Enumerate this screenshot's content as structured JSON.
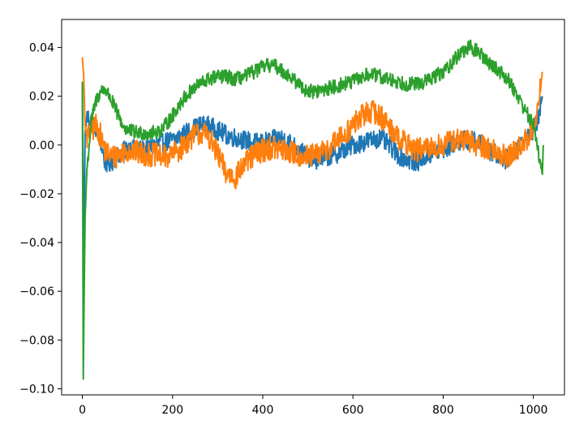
{
  "chart_data": {
    "type": "line",
    "title": "",
    "xlabel": "",
    "ylabel": "",
    "xlim": [
      -46,
      1069
    ],
    "ylim": [
      -0.1025,
      0.0515
    ],
    "grid": false,
    "legend": "none",
    "x_ticks": [
      0,
      200,
      400,
      600,
      800,
      1000
    ],
    "x_tick_labels": [
      "0",
      "200",
      "400",
      "600",
      "800",
      "1000"
    ],
    "y_ticks": [
      -0.1,
      -0.08,
      -0.06,
      -0.04,
      -0.02,
      0.0,
      0.02,
      0.04
    ],
    "y_tick_labels": [
      "−0.10",
      "−0.08",
      "−0.06",
      "−0.04",
      "−0.02",
      "0.00",
      "0.02",
      "0.04"
    ],
    "series": [
      {
        "color": "#1f77b4",
        "noise": 0.004,
        "points": [
          [
            0,
            0.024
          ],
          [
            3,
            -0.05
          ],
          [
            6,
            0.005
          ],
          [
            10,
            0.012
          ],
          [
            20,
            0.01
          ],
          [
            30,
            0.007
          ],
          [
            40,
            0.002
          ],
          [
            50,
            -0.007
          ],
          [
            60,
            -0.008
          ],
          [
            70,
            -0.006
          ],
          [
            80,
            -0.004
          ],
          [
            90,
            -0.003
          ],
          [
            100,
            -0.001
          ],
          [
            120,
            -0.002
          ],
          [
            140,
            -0.002
          ],
          [
            160,
            0.0
          ],
          [
            180,
            0.001
          ],
          [
            200,
            0.002
          ],
          [
            220,
            0.004
          ],
          [
            240,
            0.006
          ],
          [
            260,
            0.008
          ],
          [
            280,
            0.008
          ],
          [
            300,
            0.006
          ],
          [
            320,
            0.004
          ],
          [
            340,
            0.003
          ],
          [
            360,
            0.002
          ],
          [
            380,
            0.001
          ],
          [
            400,
            0.001
          ],
          [
            420,
            0.002
          ],
          [
            440,
            0.003
          ],
          [
            460,
            0.001
          ],
          [
            480,
            -0.002
          ],
          [
            500,
            -0.005
          ],
          [
            520,
            -0.006
          ],
          [
            540,
            -0.005
          ],
          [
            560,
            -0.004
          ],
          [
            580,
            -0.002
          ],
          [
            600,
            0.0
          ],
          [
            620,
            0.001
          ],
          [
            640,
            0.002
          ],
          [
            660,
            0.003
          ],
          [
            680,
            0.0
          ],
          [
            700,
            -0.004
          ],
          [
            720,
            -0.006
          ],
          [
            740,
            -0.007
          ],
          [
            760,
            -0.005
          ],
          [
            780,
            -0.003
          ],
          [
            800,
            -0.002
          ],
          [
            820,
            0.0
          ],
          [
            840,
            0.002
          ],
          [
            860,
            0.002
          ],
          [
            880,
            0.001
          ],
          [
            900,
            -0.002
          ],
          [
            920,
            -0.004
          ],
          [
            940,
            -0.006
          ],
          [
            960,
            -0.002
          ],
          [
            980,
            0.002
          ],
          [
            1000,
            0.006
          ],
          [
            1010,
            0.01
          ],
          [
            1020,
            0.02
          ]
        ]
      },
      {
        "color": "#ff7f0e",
        "noise": 0.005,
        "points": [
          [
            0,
            0.036
          ],
          [
            3,
            0.028
          ],
          [
            6,
            0.008
          ],
          [
            10,
            0.003
          ],
          [
            20,
            0.006
          ],
          [
            30,
            0.008
          ],
          [
            40,
            0.004
          ],
          [
            50,
            -0.002
          ],
          [
            60,
            -0.004
          ],
          [
            70,
            -0.005
          ],
          [
            80,
            -0.004
          ],
          [
            90,
            -0.003
          ],
          [
            100,
            -0.002
          ],
          [
            120,
            -0.003
          ],
          [
            140,
            -0.004
          ],
          [
            160,
            -0.004
          ],
          [
            180,
            -0.005
          ],
          [
            200,
            -0.004
          ],
          [
            220,
            -0.001
          ],
          [
            240,
            0.003
          ],
          [
            260,
            0.005
          ],
          [
            280,
            0.004
          ],
          [
            300,
            -0.004
          ],
          [
            320,
            -0.012
          ],
          [
            340,
            -0.013
          ],
          [
            360,
            -0.008
          ],
          [
            380,
            -0.004
          ],
          [
            400,
            -0.002
          ],
          [
            420,
            -0.001
          ],
          [
            440,
            -0.002
          ],
          [
            460,
            -0.003
          ],
          [
            480,
            -0.004
          ],
          [
            500,
            -0.005
          ],
          [
            520,
            -0.004
          ],
          [
            540,
            -0.002
          ],
          [
            560,
            0.001
          ],
          [
            580,
            0.004
          ],
          [
            600,
            0.008
          ],
          [
            620,
            0.012
          ],
          [
            640,
            0.014
          ],
          [
            660,
            0.012
          ],
          [
            680,
            0.008
          ],
          [
            700,
            0.003
          ],
          [
            720,
            0.0
          ],
          [
            740,
            -0.002
          ],
          [
            760,
            -0.002
          ],
          [
            780,
            -0.001
          ],
          [
            800,
            0.0
          ],
          [
            820,
            0.002
          ],
          [
            840,
            0.002
          ],
          [
            860,
            0.001
          ],
          [
            880,
            0.0
          ],
          [
            900,
            -0.001
          ],
          [
            920,
            -0.003
          ],
          [
            940,
            -0.005
          ],
          [
            960,
            -0.003
          ],
          [
            980,
            0.001
          ],
          [
            1000,
            0.006
          ],
          [
            1010,
            0.014
          ],
          [
            1020,
            0.03
          ]
        ]
      },
      {
        "color": "#2ca02c",
        "noise": 0.003,
        "points": [
          [
            0,
            0.026
          ],
          [
            2,
            -0.096
          ],
          [
            4,
            -0.06
          ],
          [
            6,
            -0.03
          ],
          [
            10,
            -0.01
          ],
          [
            15,
            0.0
          ],
          [
            20,
            0.01
          ],
          [
            30,
            0.018
          ],
          [
            40,
            0.022
          ],
          [
            50,
            0.023
          ],
          [
            60,
            0.02
          ],
          [
            70,
            0.016
          ],
          [
            80,
            0.012
          ],
          [
            90,
            0.008
          ],
          [
            100,
            0.006
          ],
          [
            120,
            0.005
          ],
          [
            140,
            0.005
          ],
          [
            160,
            0.005
          ],
          [
            180,
            0.007
          ],
          [
            200,
            0.012
          ],
          [
            220,
            0.018
          ],
          [
            240,
            0.022
          ],
          [
            260,
            0.025
          ],
          [
            280,
            0.027
          ],
          [
            300,
            0.028
          ],
          [
            320,
            0.028
          ],
          [
            340,
            0.027
          ],
          [
            360,
            0.028
          ],
          [
            380,
            0.03
          ],
          [
            400,
            0.032
          ],
          [
            420,
            0.033
          ],
          [
            440,
            0.031
          ],
          [
            460,
            0.028
          ],
          [
            480,
            0.025
          ],
          [
            500,
            0.022
          ],
          [
            520,
            0.022
          ],
          [
            540,
            0.023
          ],
          [
            560,
            0.024
          ],
          [
            580,
            0.025
          ],
          [
            600,
            0.026
          ],
          [
            620,
            0.028
          ],
          [
            640,
            0.029
          ],
          [
            660,
            0.028
          ],
          [
            680,
            0.027
          ],
          [
            700,
            0.026
          ],
          [
            720,
            0.025
          ],
          [
            740,
            0.025
          ],
          [
            760,
            0.026
          ],
          [
            780,
            0.028
          ],
          [
            800,
            0.03
          ],
          [
            820,
            0.034
          ],
          [
            840,
            0.038
          ],
          [
            860,
            0.04
          ],
          [
            880,
            0.038
          ],
          [
            900,
            0.034
          ],
          [
            920,
            0.031
          ],
          [
            940,
            0.028
          ],
          [
            960,
            0.022
          ],
          [
            980,
            0.015
          ],
          [
            1000,
            0.008
          ],
          [
            1010,
            0.0
          ],
          [
            1015,
            -0.008
          ],
          [
            1020,
            -0.012
          ],
          [
            1022,
            0.0
          ]
        ]
      }
    ]
  }
}
